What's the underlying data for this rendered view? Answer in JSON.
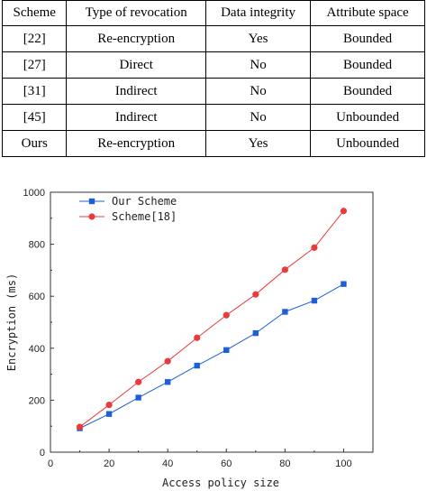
{
  "table": {
    "headers": [
      "Scheme",
      "Type of revocation",
      "Data integrity",
      "Attribute space"
    ],
    "rows": [
      [
        "[22]",
        "Re-encryption",
        "Yes",
        "Bounded"
      ],
      [
        "[27]",
        "Direct",
        "No",
        "Bounded"
      ],
      [
        "[31]",
        "Indirect",
        "No",
        "Bounded"
      ],
      [
        "[45]",
        "Indirect",
        "No",
        "Unbounded"
      ],
      [
        "Ours",
        "Re-encryption",
        "Yes",
        "Unbounded"
      ]
    ]
  },
  "chart_data": {
    "type": "line",
    "title": "",
    "xlabel": "Access policy size",
    "ylabel": "Encryption (ms)",
    "xlim": [
      0,
      110
    ],
    "ylim": [
      0,
      1000
    ],
    "xticks": [
      0,
      20,
      40,
      60,
      80,
      100
    ],
    "yticks": [
      0,
      200,
      400,
      600,
      800,
      1000
    ],
    "grid": false,
    "legend": "top-left",
    "x": [
      10,
      20,
      30,
      40,
      50,
      60,
      70,
      80,
      90,
      100
    ],
    "series": [
      {
        "name": "Our Scheme",
        "color": "#1f5fd6",
        "marker": "square",
        "values": [
          92,
          147,
          210,
          270,
          333,
          393,
          458,
          540,
          583,
          647
        ]
      },
      {
        "name": "Scheme[18]",
        "color": "#e83c3c",
        "marker": "circle",
        "values": [
          97,
          182,
          270,
          350,
          440,
          527,
          607,
          702,
          787,
          928
        ]
      }
    ]
  }
}
